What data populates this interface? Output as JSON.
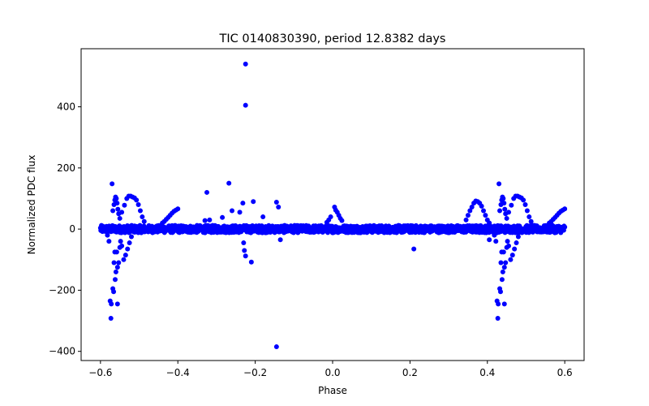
{
  "chart_data": {
    "type": "scatter",
    "title": "TIC 0140830390, period 12.8382 days",
    "xlabel": "Phase",
    "ylabel": "Normalized PDC flux",
    "xlim": [
      -0.65,
      0.65
    ],
    "ylim": [
      -430,
      590
    ],
    "xticks": [
      -0.6,
      -0.4,
      -0.2,
      0.0,
      0.2,
      0.4,
      0.6
    ],
    "xtick_labels": [
      "−0.6",
      "−0.4",
      "−0.2",
      "0.0",
      "0.2",
      "0.4",
      "0.6"
    ],
    "yticks": [
      -400,
      -200,
      0,
      200,
      400
    ],
    "ytick_labels": [
      "−400",
      "−200",
      "0",
      "200",
      "400"
    ],
    "grid": false,
    "marker_color": "#0000ff",
    "series": [
      {
        "name": "flux",
        "points": [
          [
            -0.225,
            540
          ],
          [
            -0.225,
            405
          ],
          [
            -0.145,
            -385
          ],
          [
            -0.57,
            148
          ],
          [
            -0.268,
            150
          ],
          [
            -0.325,
            120
          ],
          [
            -0.205,
            90
          ],
          [
            -0.232,
            85
          ],
          [
            -0.145,
            88
          ],
          [
            -0.14,
            72
          ],
          [
            -0.23,
            -45
          ],
          [
            -0.228,
            -70
          ],
          [
            -0.225,
            -88
          ],
          [
            -0.21,
            -108
          ],
          [
            0.21,
            -65
          ],
          [
            -0.135,
            -35
          ],
          [
            -0.33,
            28
          ],
          [
            -0.318,
            30
          ],
          [
            -0.26,
            60
          ],
          [
            -0.24,
            55
          ],
          [
            -0.18,
            40
          ],
          [
            -0.285,
            38
          ],
          [
            -0.575,
            -235
          ],
          [
            -0.572,
            -245
          ],
          [
            -0.568,
            -195
          ],
          [
            -0.566,
            -205
          ],
          [
            -0.573,
            -292
          ],
          [
            -0.556,
            -245
          ],
          [
            -0.562,
            -165
          ],
          [
            -0.56,
            -140
          ],
          [
            -0.565,
            -110
          ],
          [
            -0.563,
            -75
          ],
          [
            -0.558,
            -75
          ],
          [
            -0.556,
            -125
          ],
          [
            -0.553,
            -110
          ],
          [
            -0.55,
            -60
          ],
          [
            -0.548,
            -40
          ],
          [
            -0.545,
            -55
          ],
          [
            -0.54,
            -100
          ],
          [
            -0.535,
            -85
          ],
          [
            -0.53,
            -65
          ],
          [
            -0.525,
            -45
          ],
          [
            -0.52,
            -25
          ],
          [
            -0.578,
            -40
          ],
          [
            -0.582,
            -20
          ],
          [
            -0.568,
            60
          ],
          [
            -0.565,
            80
          ],
          [
            -0.563,
            95
          ],
          [
            -0.561,
            105
          ],
          [
            -0.559,
            100
          ],
          [
            -0.557,
            85
          ],
          [
            -0.555,
            65
          ],
          [
            -0.553,
            50
          ],
          [
            -0.55,
            35
          ],
          [
            -0.545,
            55
          ],
          [
            -0.538,
            78
          ],
          [
            -0.532,
            100
          ],
          [
            -0.527,
            108
          ],
          [
            -0.522,
            108
          ],
          [
            -0.517,
            105
          ],
          [
            -0.512,
            102
          ],
          [
            -0.507,
            95
          ],
          [
            -0.502,
            80
          ],
          [
            -0.497,
            60
          ],
          [
            -0.492,
            40
          ],
          [
            -0.487,
            25
          ],
          [
            -0.44,
            20
          ],
          [
            -0.435,
            25
          ],
          [
            -0.43,
            32
          ],
          [
            -0.425,
            38
          ],
          [
            -0.42,
            45
          ],
          [
            -0.415,
            52
          ],
          [
            -0.41,
            58
          ],
          [
            -0.405,
            62
          ],
          [
            -0.4,
            66
          ],
          [
            0.005,
            72
          ],
          [
            0.008,
            62
          ],
          [
            0.012,
            55
          ],
          [
            0.016,
            45
          ],
          [
            0.02,
            35
          ],
          [
            0.024,
            28
          ],
          [
            -0.005,
            40
          ],
          [
            -0.01,
            30
          ],
          [
            -0.015,
            22
          ],
          [
            0.345,
            30
          ],
          [
            0.35,
            45
          ],
          [
            0.355,
            60
          ],
          [
            0.36,
            72
          ],
          [
            0.365,
            85
          ],
          [
            0.37,
            92
          ],
          [
            0.375,
            90
          ],
          [
            0.38,
            85
          ],
          [
            0.385,
            75
          ],
          [
            0.39,
            60
          ],
          [
            0.395,
            45
          ],
          [
            0.4,
            30
          ],
          [
            0.405,
            20
          ],
          [
            0.425,
            -235
          ],
          [
            0.428,
            -245
          ],
          [
            0.432,
            -195
          ],
          [
            0.434,
            -205
          ],
          [
            0.427,
            -292
          ],
          [
            0.444,
            -245
          ],
          [
            0.438,
            -165
          ],
          [
            0.44,
            -140
          ],
          [
            0.435,
            -110
          ],
          [
            0.437,
            -75
          ],
          [
            0.442,
            -75
          ],
          [
            0.444,
            -125
          ],
          [
            0.447,
            -110
          ],
          [
            0.45,
            -60
          ],
          [
            0.452,
            -40
          ],
          [
            0.455,
            -55
          ],
          [
            0.46,
            -100
          ],
          [
            0.465,
            -85
          ],
          [
            0.47,
            -65
          ],
          [
            0.475,
            -45
          ],
          [
            0.48,
            -25
          ],
          [
            0.422,
            -40
          ],
          [
            0.418,
            -20
          ],
          [
            0.405,
            -35
          ],
          [
            0.43,
            148
          ],
          [
            0.432,
            60
          ],
          [
            0.435,
            80
          ],
          [
            0.437,
            95
          ],
          [
            0.439,
            105
          ],
          [
            0.441,
            100
          ],
          [
            0.443,
            85
          ],
          [
            0.445,
            65
          ],
          [
            0.447,
            50
          ],
          [
            0.45,
            35
          ],
          [
            0.455,
            55
          ],
          [
            0.462,
            78
          ],
          [
            0.468,
            100
          ],
          [
            0.473,
            108
          ],
          [
            0.478,
            108
          ],
          [
            0.483,
            105
          ],
          [
            0.488,
            102
          ],
          [
            0.493,
            95
          ],
          [
            0.498,
            80
          ],
          [
            0.503,
            60
          ],
          [
            0.508,
            40
          ],
          [
            0.513,
            25
          ],
          [
            0.56,
            20
          ],
          [
            0.565,
            25
          ],
          [
            0.57,
            32
          ],
          [
            0.575,
            38
          ],
          [
            0.58,
            45
          ],
          [
            0.585,
            52
          ],
          [
            0.59,
            58
          ],
          [
            0.595,
            62
          ],
          [
            0.6,
            66
          ]
        ],
        "baseline": {
          "x_range": [
            -0.6,
            0.6
          ],
          "y_center": 0,
          "spread": 12
        }
      }
    ]
  }
}
